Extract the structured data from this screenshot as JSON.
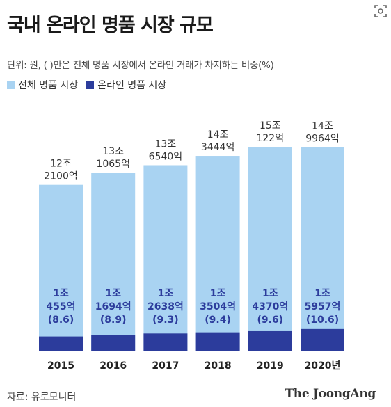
{
  "header": {
    "title": "국내 온라인 명품 시장 규모",
    "unit_note": "단위: 원, ( )안은 전체 명품 시장에서 온라인 거래가 차지하는 비중(%)",
    "icon": "scan-icon"
  },
  "footer": {
    "source": "자료: 유로모니터",
    "logo": "The JoongAng"
  },
  "colors": {
    "total": "#a9d3f2",
    "online": "#2c3c9c",
    "online_label": "#2c3c9c",
    "axis": "#333333"
  },
  "chart_data": {
    "type": "bar",
    "stacked": false,
    "overlap": true,
    "categories": [
      "2015",
      "2016",
      "2017",
      "2018",
      "2019",
      "2020년"
    ],
    "series": [
      {
        "name": "전체 명품 시장",
        "unit": "억원",
        "values": [
          122100,
          131065,
          136540,
          143444,
          150122,
          149964
        ],
        "labels": [
          [
            "12조",
            "2100억"
          ],
          [
            "13조",
            "1065억"
          ],
          [
            "13조",
            "6540억"
          ],
          [
            "14조",
            "3444억"
          ],
          [
            "15조",
            "122억"
          ],
          [
            "14조",
            "9964억"
          ]
        ]
      },
      {
        "name": "온라인 명품 시장",
        "unit": "억원",
        "values": [
          10455,
          11694,
          12638,
          13504,
          14370,
          15957
        ],
        "labels": [
          [
            "1조",
            "455억",
            "(8.6)"
          ],
          [
            "1조",
            "1694억",
            "(8.9)"
          ],
          [
            "1조",
            "2638억",
            "(9.3)"
          ],
          [
            "1조",
            "3504억",
            "(9.4)"
          ],
          [
            "1조",
            "4370억",
            "(9.6)"
          ],
          [
            "1조",
            "5957억",
            "(10.6)"
          ]
        ]
      }
    ],
    "share_percent": [
      8.6,
      8.9,
      9.3,
      9.4,
      9.6,
      10.6
    ],
    "xlabel": "",
    "ylabel": "",
    "ylim": [
      0,
      150122
    ],
    "grid": false,
    "legend": "top-left"
  }
}
